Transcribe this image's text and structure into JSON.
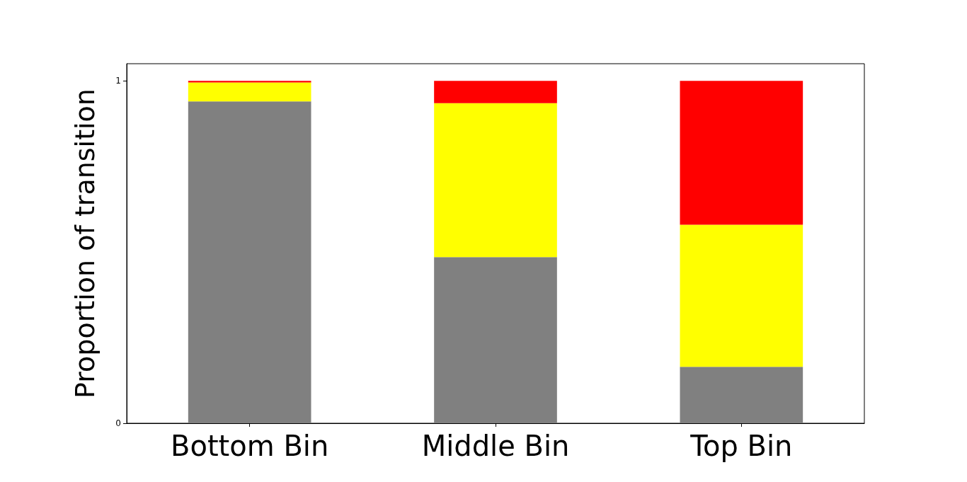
{
  "chart_data": {
    "type": "bar",
    "stacked": true,
    "ylabel": "Proportion of transition",
    "categories": [
      "Bottom Bin",
      "Middle Bin",
      "Top Bin"
    ],
    "series": [
      {
        "color": "#808080",
        "values": [
          0.94,
          0.485,
          0.165
        ]
      },
      {
        "color": "#ffff00",
        "values": [
          0.055,
          0.45,
          0.415
        ]
      },
      {
        "color": "#ff0000",
        "values": [
          0.005,
          0.065,
          0.42
        ]
      }
    ],
    "ylim": [
      0,
      1.05
    ],
    "yticks": [
      0,
      1
    ],
    "grid": false
  }
}
